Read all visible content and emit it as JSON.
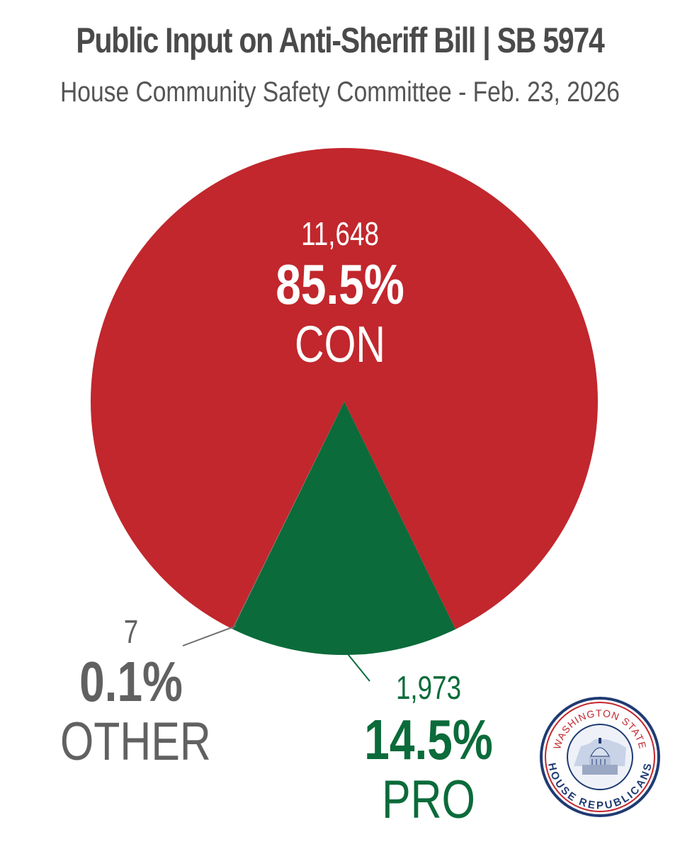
{
  "title": "Public Input on Anti-Sheriff Bill | SB 5974",
  "subtitle": "House Community Safety Committee - Feb. 23, 2026",
  "colors": {
    "con": "#c1272d",
    "pro": "#0b6b3a",
    "other": "#6d6d6d",
    "title": "#4a4a4a"
  },
  "chart_data": {
    "type": "pie",
    "title": "Public Input on Anti-Sheriff Bill | SB 5974",
    "subtitle": "House Community Safety Committee - Feb. 23, 2026",
    "slices": [
      {
        "label": "CON",
        "count": "11,648",
        "percent": "85.5%",
        "value": 11648,
        "color": "#c1272d"
      },
      {
        "label": "PRO",
        "count": "1,973",
        "percent": "14.5%",
        "value": 1973,
        "color": "#0b6b3a"
      },
      {
        "label": "OTHER",
        "count": "7",
        "percent": "0.1%",
        "value": 7,
        "color": "#6d6d6d"
      }
    ]
  },
  "logo": {
    "top_text": "WASHINGTON STATE",
    "bottom_text": "HOUSE REPUBLICANS",
    "icon": "capitol-dome-seal-icon"
  }
}
